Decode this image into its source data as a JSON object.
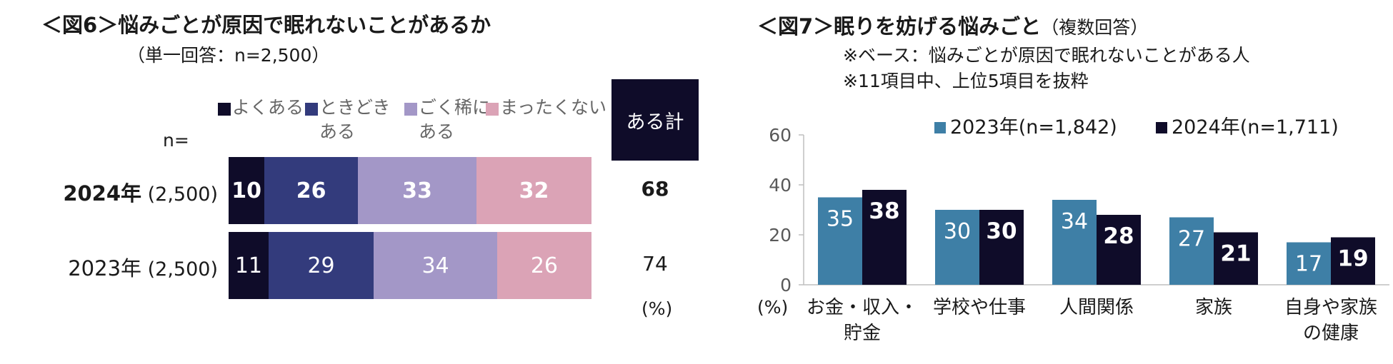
{
  "fig6": {
    "title": "＜図6＞悩みごとが原因で眠れないことがあるか",
    "subtitle": "（単一回答：n=2,500）",
    "n_header": "n=",
    "total_header": "ある計",
    "percent_unit": "(%)",
    "legend": [
      {
        "label": "よくある",
        "color": "#0f0c29"
      },
      {
        "label": "ときどき\nある",
        "color": "#333b7c"
      },
      {
        "label": "ごく稀に\nある",
        "color": "#a397c7"
      },
      {
        "label": "まったくない",
        "color": "#dba3b6"
      }
    ],
    "rows": [
      {
        "year": "2024年",
        "n": "(2,500)",
        "values": [
          10,
          26,
          33,
          32
        ],
        "total": "68",
        "bold": true
      },
      {
        "year": "2023年",
        "n": "(2,500)",
        "values": [
          11,
          29,
          34,
          26
        ],
        "total": "74",
        "bold": false
      }
    ]
  },
  "fig7": {
    "title": "＜図7＞眠りを妨げる悩みごと",
    "title_note": "（複数回答）",
    "notes": [
      "※ベース：悩みごとが原因で眠れないことがある人",
      "※11項目中、上位5項目を抜粋"
    ]
  },
  "chart_data": [
    {
      "type": "bar",
      "orientation": "horizontal-stacked-100",
      "title": "＜図6＞悩みごとが原因で眠れないことがあるか",
      "categories": [
        "2024年 (2,500)",
        "2023年 (2,500)"
      ],
      "series": [
        {
          "name": "よくある",
          "values": [
            10,
            11
          ],
          "color": "#0f0c29"
        },
        {
          "name": "ときどきある",
          "values": [
            26,
            29
          ],
          "color": "#333b7c"
        },
        {
          "name": "ごく稀にある",
          "values": [
            33,
            34
          ],
          "color": "#a397c7"
        },
        {
          "name": "まったくない",
          "values": [
            32,
            26
          ],
          "color": "#dba3b6"
        }
      ],
      "totals": {
        "label": "ある計",
        "values": [
          68,
          74
        ]
      },
      "unit": "(%)"
    },
    {
      "type": "bar",
      "title": "＜図7＞眠りを妨げる悩みごと",
      "categories": [
        "お金・収入・\n貯金",
        "学校や仕事",
        "人間関係",
        "家族",
        "自身や家族\nの健康"
      ],
      "series": [
        {
          "name": "2023年(n=1,842)",
          "values": [
            35,
            30,
            34,
            27,
            17
          ],
          "color": "#3e7fa6"
        },
        {
          "name": "2024年(n=1,711)",
          "values": [
            38,
            30,
            28,
            21,
            19
          ],
          "color": "#0f0c29"
        }
      ],
      "ylim": [
        0,
        60
      ],
      "yticks": [
        0,
        20,
        40,
        60
      ],
      "ylabel": "(%)",
      "grid": false,
      "legend_position": "top"
    }
  ]
}
